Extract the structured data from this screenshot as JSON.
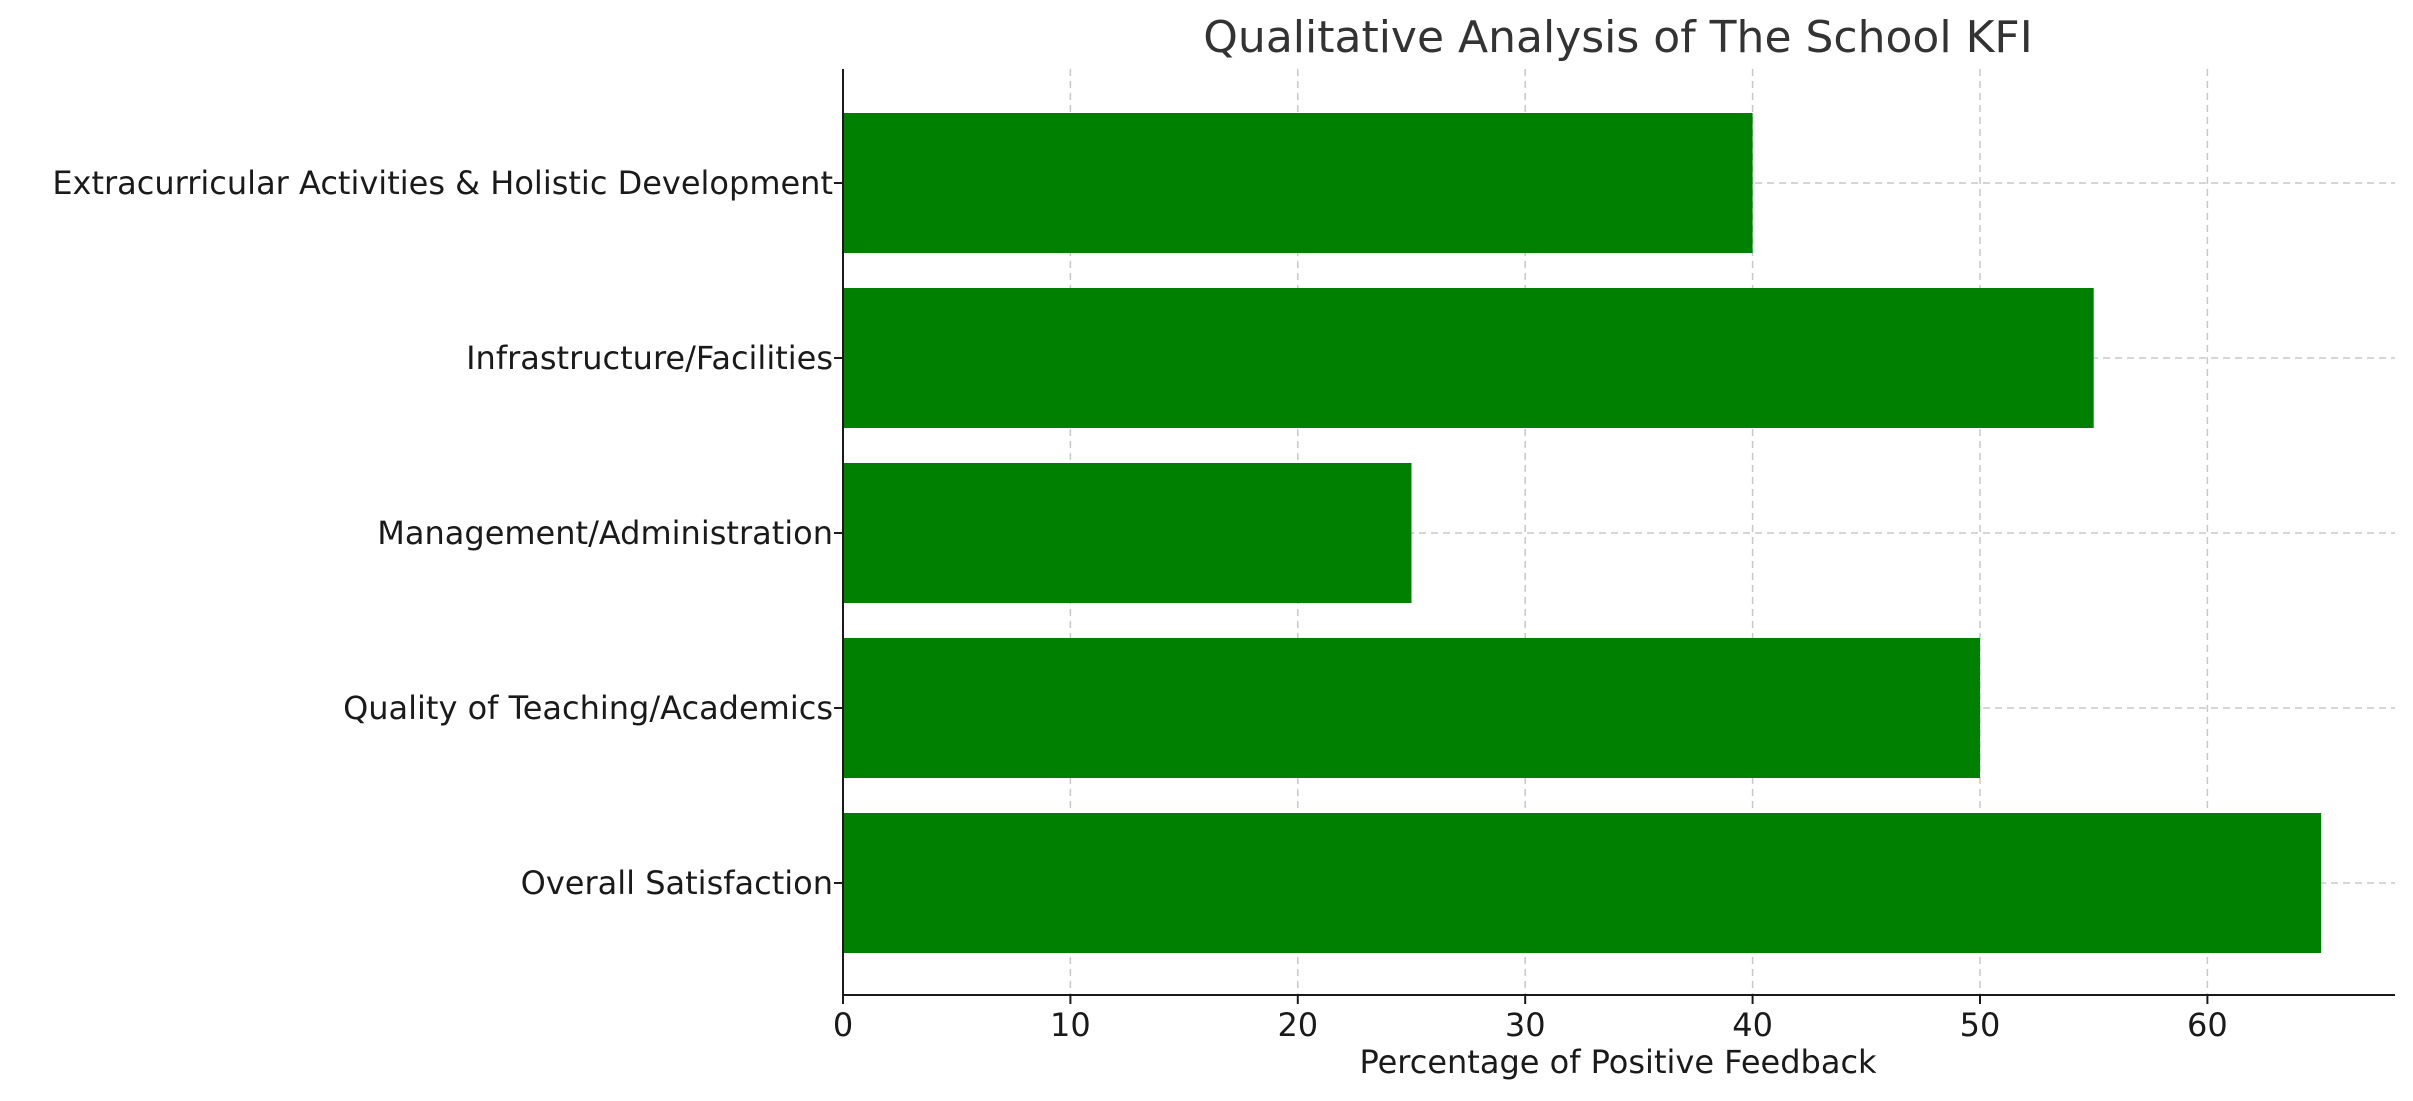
{
  "chart_data": {
    "type": "bar",
    "orientation": "horizontal",
    "title": "Qualitative Analysis of The School KFI",
    "xlabel": "Percentage of Positive Feedback",
    "ylabel": "",
    "categories": [
      "Overall Satisfaction",
      "Quality of Teaching/Academics",
      "Management/Administration",
      "Infrastructure/Facilities",
      "Extracurricular Activities & Holistic Development"
    ],
    "values": [
      65,
      50,
      25,
      55,
      40
    ],
    "xlim": [
      0,
      68.25
    ],
    "xticks": [
      0,
      10,
      20,
      30,
      40,
      50,
      60
    ],
    "xtick_labels": [
      "0",
      "10",
      "20",
      "30",
      "40",
      "50",
      "60"
    ],
    "grid": true,
    "bar_color": "#008000"
  }
}
